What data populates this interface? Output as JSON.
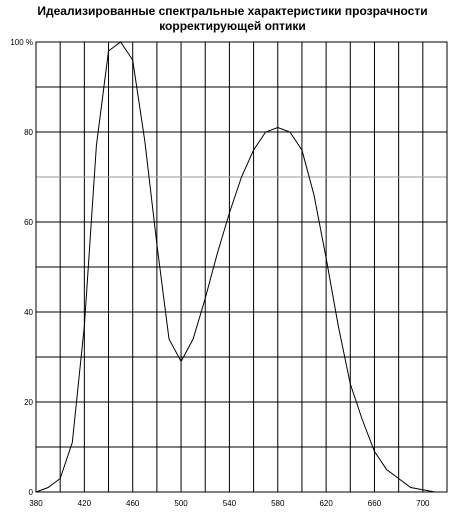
{
  "chart_data": {
    "type": "line",
    "title": [
      "Идеализированные спектральные характеристики прозрачности",
      "корректирующей оптики"
    ],
    "xlabel": "",
    "ylabel": "",
    "xlim": [
      380,
      720
    ],
    "ylim": [
      0,
      100
    ],
    "x_ticks": [
      {
        "value": 380,
        "label": "380"
      },
      {
        "value": 420,
        "label": "420"
      },
      {
        "value": 460,
        "label": "460"
      },
      {
        "value": 500,
        "label": "500"
      },
      {
        "value": 540,
        "label": "540"
      },
      {
        "value": 580,
        "label": "580"
      },
      {
        "value": 620,
        "label": "620"
      },
      {
        "value": 660,
        "label": "660"
      },
      {
        "value": 700,
        "label": "700"
      }
    ],
    "y_ticks": [
      {
        "value": 0,
        "label": "0"
      },
      {
        "value": 20,
        "label": "20"
      },
      {
        "value": 40,
        "label": "40"
      },
      {
        "value": 60,
        "label": "60"
      },
      {
        "value": 80,
        "label": "80"
      },
      {
        "value": 100,
        "label": "100 %"
      }
    ],
    "grid": true,
    "series": [
      {
        "color": "#000000",
        "x": [
          380,
          390,
          400,
          410,
          420,
          430,
          440,
          450,
          460,
          470,
          480,
          490,
          500,
          510,
          520,
          530,
          540,
          550,
          560,
          570,
          580,
          590,
          600,
          610,
          620,
          630,
          640,
          650,
          660,
          670,
          680,
          690,
          700,
          710
        ],
        "y": [
          0,
          1,
          3,
          11,
          37,
          77,
          98,
          100,
          96,
          78,
          55,
          34,
          29,
          34,
          43,
          53,
          62,
          70,
          76,
          80,
          81,
          80,
          76,
          66,
          52,
          37,
          24,
          16,
          9,
          5,
          3,
          1,
          0.5,
          0
        ]
      }
    ]
  }
}
